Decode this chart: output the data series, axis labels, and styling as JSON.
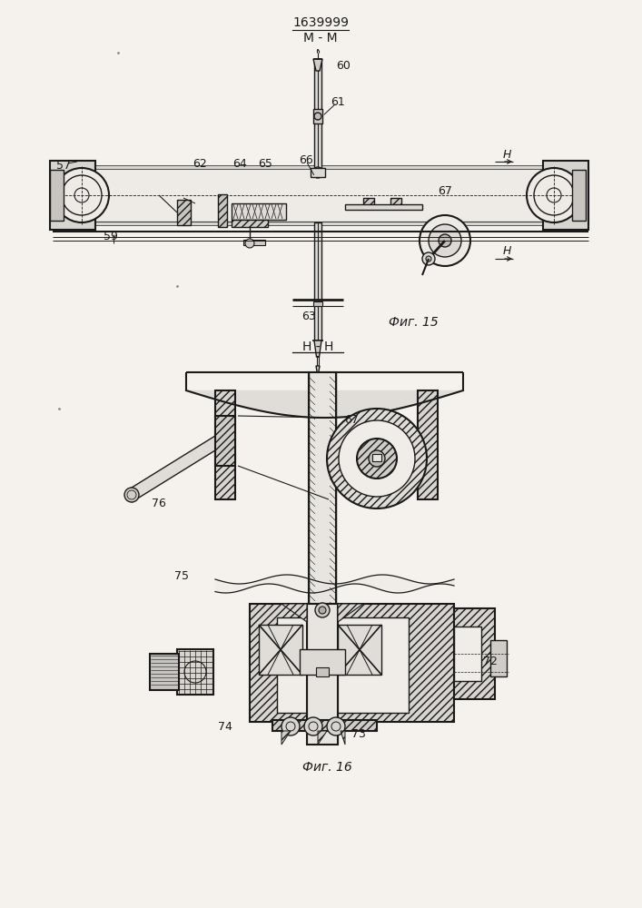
{
  "bg_color": "#f5f2ed",
  "lc": "#1a1a1a",
  "title": "1639999",
  "mm_label": "М - М",
  "fig15_label": "Фиг. 15",
  "fig16_label": "Фиг. 16",
  "hh_label": "Н - Н"
}
